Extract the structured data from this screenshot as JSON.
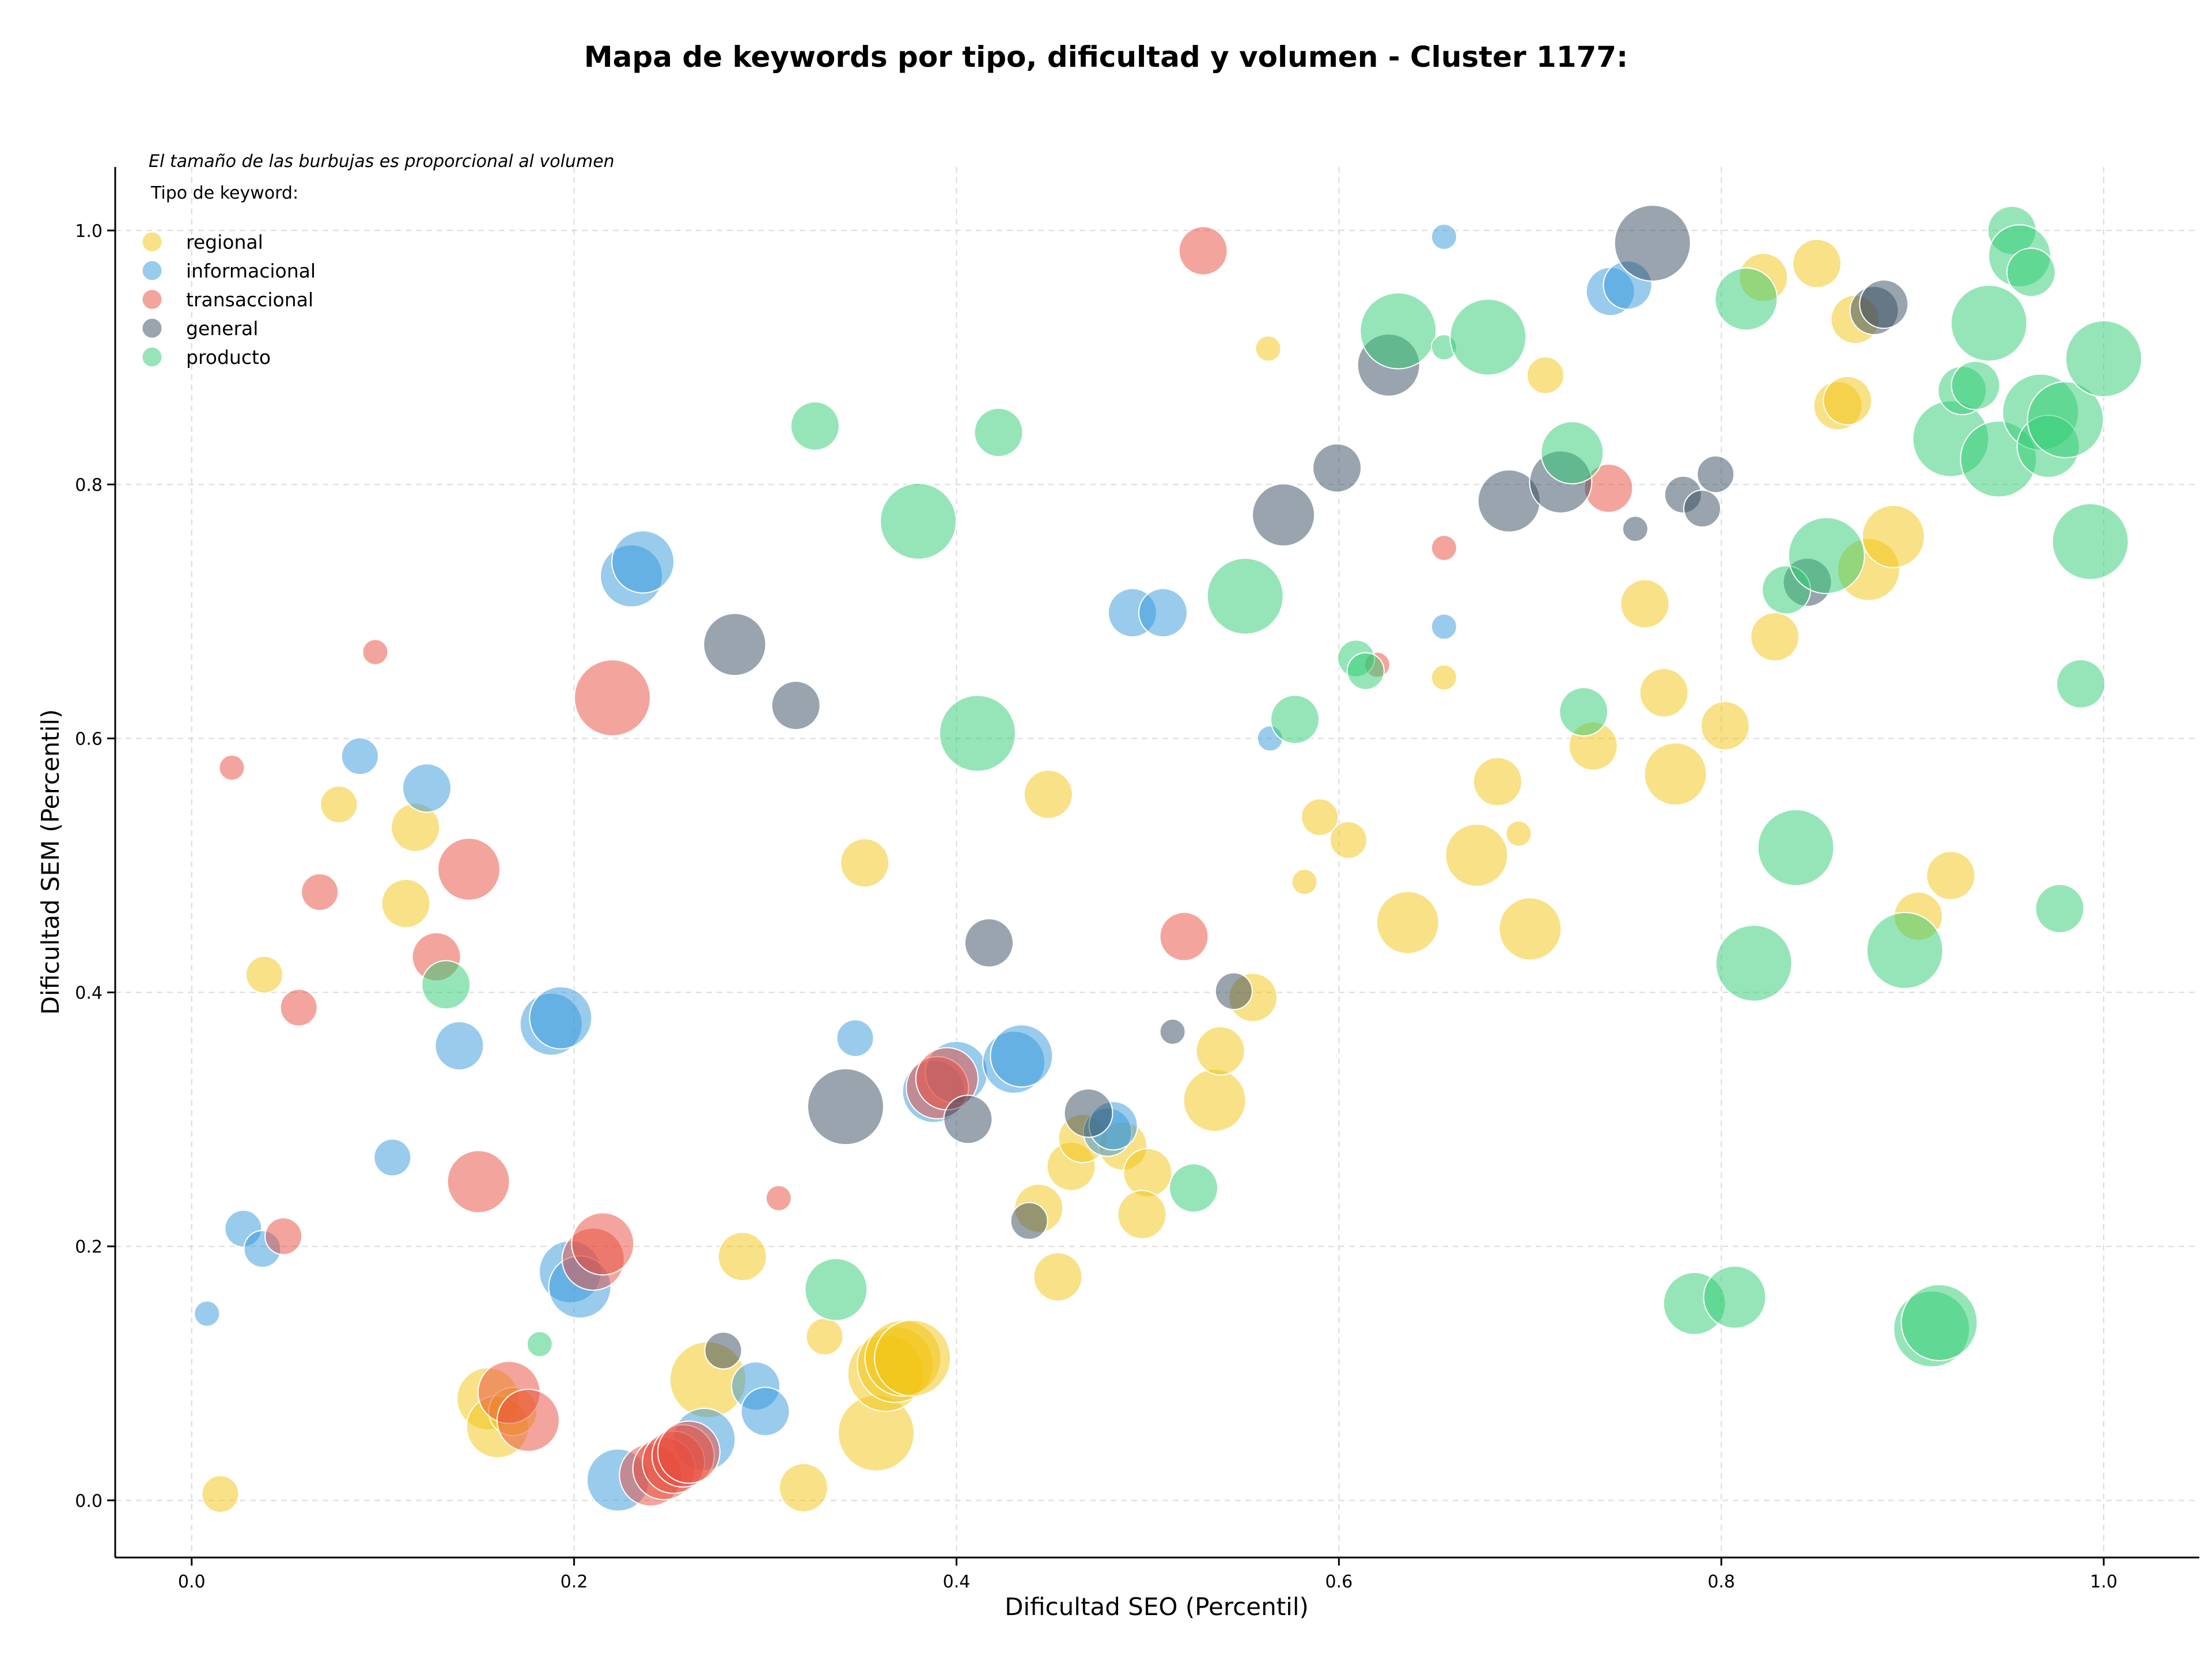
{
  "chart_data": {
    "type": "scatter",
    "title": "Mapa de keywords por tipo, dificultad y volumen - Cluster 1177:",
    "xlabel": "Dificultad SEO (Percentil)",
    "ylabel": "Dificultad SEM (Percentil)",
    "xlim": [
      -0.04,
      1.05
    ],
    "ylim": [
      -0.045,
      1.05
    ],
    "xticks": [
      0.0,
      0.2,
      0.4,
      0.6,
      0.8,
      1.0
    ],
    "xtick_labels": [
      "0.0",
      "0.2",
      "0.4",
      "0.6",
      "0.8",
      "1.0"
    ],
    "yticks": [
      0.0,
      0.2,
      0.4,
      0.6,
      0.8,
      1.0
    ],
    "ytick_labels": [
      "0.0",
      "0.2",
      "0.4",
      "0.6",
      "0.8",
      "1.0"
    ],
    "grid": true,
    "note": "El tamaño de las burbujas es proporcional al volumen",
    "legend_title": "Tipo de keyword:",
    "legend_position": "top-left",
    "series": [
      {
        "name": "regional",
        "color": "#f1c40f",
        "points": [
          {
            "x": 0.015,
            "y": 0.005,
            "s": 2
          },
          {
            "x": 0.038,
            "y": 0.414,
            "s": 2
          },
          {
            "x": 0.077,
            "y": 0.548,
            "s": 2
          },
          {
            "x": 0.112,
            "y": 0.47,
            "s": 3
          },
          {
            "x": 0.117,
            "y": 0.53,
            "s": 3
          },
          {
            "x": 0.155,
            "y": 0.08,
            "s": 4
          },
          {
            "x": 0.16,
            "y": 0.058,
            "s": 4
          },
          {
            "x": 0.168,
            "y": 0.07,
            "s": 3
          },
          {
            "x": 0.288,
            "y": 0.192,
            "s": 3
          },
          {
            "x": 0.27,
            "y": 0.095,
            "s": 5
          },
          {
            "x": 0.32,
            "y": 0.01,
            "s": 3
          },
          {
            "x": 0.331,
            "y": 0.129,
            "s": 2
          },
          {
            "x": 0.352,
            "y": 0.502,
            "s": 3
          },
          {
            "x": 0.358,
            "y": 0.053,
            "s": 5
          },
          {
            "x": 0.363,
            "y": 0.1,
            "s": 5
          },
          {
            "x": 0.368,
            "y": 0.107,
            "s": 5
          },
          {
            "x": 0.372,
            "y": 0.112,
            "s": 5
          },
          {
            "x": 0.377,
            "y": 0.112,
            "s": 5
          },
          {
            "x": 0.443,
            "y": 0.23,
            "s": 3
          },
          {
            "x": 0.448,
            "y": 0.556,
            "s": 3
          },
          {
            "x": 0.453,
            "y": 0.176,
            "s": 3
          },
          {
            "x": 0.46,
            "y": 0.263,
            "s": 3
          },
          {
            "x": 0.466,
            "y": 0.285,
            "s": 3
          },
          {
            "x": 0.487,
            "y": 0.279,
            "s": 3
          },
          {
            "x": 0.5,
            "y": 0.258,
            "s": 3
          },
          {
            "x": 0.497,
            "y": 0.225,
            "s": 3
          },
          {
            "x": 0.535,
            "y": 0.315,
            "s": 4
          },
          {
            "x": 0.538,
            "y": 0.354,
            "s": 3
          },
          {
            "x": 0.555,
            "y": 0.396,
            "s": 3
          },
          {
            "x": 0.563,
            "y": 0.907,
            "s": 1
          },
          {
            "x": 0.582,
            "y": 0.487,
            "s": 1
          },
          {
            "x": 0.59,
            "y": 0.538,
            "s": 2
          },
          {
            "x": 0.605,
            "y": 0.52,
            "s": 2
          },
          {
            "x": 0.636,
            "y": 0.455,
            "s": 4
          },
          {
            "x": 0.655,
            "y": 0.648,
            "s": 1
          },
          {
            "x": 0.672,
            "y": 0.508,
            "s": 4
          },
          {
            "x": 0.683,
            "y": 0.566,
            "s": 3
          },
          {
            "x": 0.694,
            "y": 0.525,
            "s": 1
          },
          {
            "x": 0.7,
            "y": 0.45,
            "s": 4
          },
          {
            "x": 0.708,
            "y": 0.886,
            "s": 2
          },
          {
            "x": 0.733,
            "y": 0.594,
            "s": 3
          },
          {
            "x": 0.76,
            "y": 0.706,
            "s": 3
          },
          {
            "x": 0.77,
            "y": 0.636,
            "s": 3
          },
          {
            "x": 0.776,
            "y": 0.572,
            "s": 4
          },
          {
            "x": 0.802,
            "y": 0.61,
            "s": 3
          },
          {
            "x": 0.822,
            "y": 0.963,
            "s": 3
          },
          {
            "x": 0.828,
            "y": 0.68,
            "s": 3
          },
          {
            "x": 0.85,
            "y": 0.974,
            "s": 3
          },
          {
            "x": 0.861,
            "y": 0.862,
            "s": 3
          },
          {
            "x": 0.866,
            "y": 0.866,
            "s": 3
          },
          {
            "x": 0.87,
            "y": 0.93,
            "s": 3
          },
          {
            "x": 0.877,
            "y": 0.733,
            "s": 4
          },
          {
            "x": 0.89,
            "y": 0.759,
            "s": 4
          },
          {
            "x": 0.903,
            "y": 0.46,
            "s": 3
          },
          {
            "x": 0.92,
            "y": 0.492,
            "s": 3
          }
        ]
      },
      {
        "name": "informacional",
        "color": "#3498db",
        "points": [
          {
            "x": 0.008,
            "y": 0.147,
            "s": 1
          },
          {
            "x": 0.027,
            "y": 0.214,
            "s": 2
          },
          {
            "x": 0.037,
            "y": 0.198,
            "s": 2
          },
          {
            "x": 0.088,
            "y": 0.586,
            "s": 2
          },
          {
            "x": 0.105,
            "y": 0.27,
            "s": 2
          },
          {
            "x": 0.123,
            "y": 0.561,
            "s": 3
          },
          {
            "x": 0.14,
            "y": 0.358,
            "s": 3
          },
          {
            "x": 0.188,
            "y": 0.375,
            "s": 4
          },
          {
            "x": 0.193,
            "y": 0.38,
            "s": 4
          },
          {
            "x": 0.198,
            "y": 0.18,
            "s": 4
          },
          {
            "x": 0.203,
            "y": 0.168,
            "s": 4
          },
          {
            "x": 0.223,
            "y": 0.016,
            "s": 4
          },
          {
            "x": 0.23,
            "y": 0.728,
            "s": 4
          },
          {
            "x": 0.236,
            "y": 0.739,
            "s": 4
          },
          {
            "x": 0.268,
            "y": 0.048,
            "s": 4
          },
          {
            "x": 0.295,
            "y": 0.09,
            "s": 3
          },
          {
            "x": 0.3,
            "y": 0.07,
            "s": 3
          },
          {
            "x": 0.347,
            "y": 0.364,
            "s": 2
          },
          {
            "x": 0.388,
            "y": 0.322,
            "s": 4
          },
          {
            "x": 0.4,
            "y": 0.337,
            "s": 4
          },
          {
            "x": 0.43,
            "y": 0.345,
            "s": 4
          },
          {
            "x": 0.434,
            "y": 0.35,
            "s": 4
          },
          {
            "x": 0.479,
            "y": 0.29,
            "s": 3
          },
          {
            "x": 0.482,
            "y": 0.295,
            "s": 3
          },
          {
            "x": 0.492,
            "y": 0.699,
            "s": 3
          },
          {
            "x": 0.508,
            "y": 0.699,
            "s": 3
          },
          {
            "x": 0.564,
            "y": 0.6,
            "s": 1
          },
          {
            "x": 0.655,
            "y": 0.995,
            "s": 1
          },
          {
            "x": 0.655,
            "y": 0.688,
            "s": 1
          },
          {
            "x": 0.742,
            "y": 0.952,
            "s": 3
          },
          {
            "x": 0.751,
            "y": 0.957,
            "s": 3
          }
        ]
      },
      {
        "name": "transaccional",
        "color": "#e74c3c",
        "points": [
          {
            "x": 0.021,
            "y": 0.577,
            "s": 1
          },
          {
            "x": 0.048,
            "y": 0.208,
            "s": 2
          },
          {
            "x": 0.056,
            "y": 0.388,
            "s": 2
          },
          {
            "x": 0.067,
            "y": 0.479,
            "s": 2
          },
          {
            "x": 0.096,
            "y": 0.668,
            "s": 1
          },
          {
            "x": 0.128,
            "y": 0.428,
            "s": 3
          },
          {
            "x": 0.145,
            "y": 0.497,
            "s": 4
          },
          {
            "x": 0.15,
            "y": 0.251,
            "s": 4
          },
          {
            "x": 0.166,
            "y": 0.085,
            "s": 4
          },
          {
            "x": 0.176,
            "y": 0.063,
            "s": 4
          },
          {
            "x": 0.21,
            "y": 0.19,
            "s": 4
          },
          {
            "x": 0.215,
            "y": 0.202,
            "s": 4
          },
          {
            "x": 0.22,
            "y": 0.632,
            "s": 5
          },
          {
            "x": 0.24,
            "y": 0.02,
            "s": 4
          },
          {
            "x": 0.247,
            "y": 0.025,
            "s": 4
          },
          {
            "x": 0.252,
            "y": 0.03,
            "s": 4
          },
          {
            "x": 0.257,
            "y": 0.035,
            "s": 4
          },
          {
            "x": 0.26,
            "y": 0.038,
            "s": 4
          },
          {
            "x": 0.307,
            "y": 0.238,
            "s": 1
          },
          {
            "x": 0.39,
            "y": 0.325,
            "s": 4
          },
          {
            "x": 0.395,
            "y": 0.332,
            "s": 4
          },
          {
            "x": 0.519,
            "y": 0.444,
            "s": 3
          },
          {
            "x": 0.529,
            "y": 0.984,
            "s": 3
          },
          {
            "x": 0.62,
            "y": 0.658,
            "s": 1
          },
          {
            "x": 0.655,
            "y": 0.75,
            "s": 1
          },
          {
            "x": 0.741,
            "y": 0.797,
            "s": 3
          }
        ]
      },
      {
        "name": "general",
        "color": "#34495e",
        "points": [
          {
            "x": 0.278,
            "y": 0.118,
            "s": 2
          },
          {
            "x": 0.284,
            "y": 0.674,
            "s": 4
          },
          {
            "x": 0.316,
            "y": 0.626,
            "s": 3
          },
          {
            "x": 0.342,
            "y": 0.31,
            "s": 5
          },
          {
            "x": 0.406,
            "y": 0.3,
            "s": 3
          },
          {
            "x": 0.417,
            "y": 0.439,
            "s": 3
          },
          {
            "x": 0.438,
            "y": 0.22,
            "s": 2
          },
          {
            "x": 0.469,
            "y": 0.305,
            "s": 3
          },
          {
            "x": 0.513,
            "y": 0.369,
            "s": 1
          },
          {
            "x": 0.545,
            "y": 0.401,
            "s": 2
          },
          {
            "x": 0.571,
            "y": 0.776,
            "s": 4
          },
          {
            "x": 0.599,
            "y": 0.813,
            "s": 3
          },
          {
            "x": 0.626,
            "y": 0.894,
            "s": 4
          },
          {
            "x": 0.689,
            "y": 0.787,
            "s": 4
          },
          {
            "x": 0.716,
            "y": 0.802,
            "s": 4
          },
          {
            "x": 0.755,
            "y": 0.765,
            "s": 1
          },
          {
            "x": 0.764,
            "y": 0.99,
            "s": 5
          },
          {
            "x": 0.78,
            "y": 0.792,
            "s": 2
          },
          {
            "x": 0.79,
            "y": 0.781,
            "s": 2
          },
          {
            "x": 0.797,
            "y": 0.808,
            "s": 2
          },
          {
            "x": 0.845,
            "y": 0.723,
            "s": 3
          },
          {
            "x": 0.88,
            "y": 0.937,
            "s": 3
          },
          {
            "x": 0.885,
            "y": 0.942,
            "s": 3
          }
        ]
      },
      {
        "name": "producto",
        "color": "#2ecc71",
        "points": [
          {
            "x": 0.133,
            "y": 0.406,
            "s": 3
          },
          {
            "x": 0.182,
            "y": 0.123,
            "s": 1
          },
          {
            "x": 0.326,
            "y": 0.846,
            "s": 3
          },
          {
            "x": 0.337,
            "y": 0.166,
            "s": 4
          },
          {
            "x": 0.38,
            "y": 0.771,
            "s": 5
          },
          {
            "x": 0.411,
            "y": 0.604,
            "s": 5
          },
          {
            "x": 0.422,
            "y": 0.841,
            "s": 3
          },
          {
            "x": 0.524,
            "y": 0.246,
            "s": 3
          },
          {
            "x": 0.551,
            "y": 0.712,
            "s": 5
          },
          {
            "x": 0.577,
            "y": 0.615,
            "s": 3
          },
          {
            "x": 0.609,
            "y": 0.663,
            "s": 2
          },
          {
            "x": 0.614,
            "y": 0.653,
            "s": 2
          },
          {
            "x": 0.631,
            "y": 0.921,
            "s": 5
          },
          {
            "x": 0.655,
            "y": 0.908,
            "s": 1
          },
          {
            "x": 0.678,
            "y": 0.916,
            "s": 5
          },
          {
            "x": 0.722,
            "y": 0.825,
            "s": 4
          },
          {
            "x": 0.728,
            "y": 0.621,
            "s": 3
          },
          {
            "x": 0.786,
            "y": 0.155,
            "s": 4
          },
          {
            "x": 0.807,
            "y": 0.16,
            "s": 4
          },
          {
            "x": 0.813,
            "y": 0.946,
            "s": 4
          },
          {
            "x": 0.817,
            "y": 0.423,
            "s": 5
          },
          {
            "x": 0.834,
            "y": 0.717,
            "s": 3
          },
          {
            "x": 0.839,
            "y": 0.514,
            "s": 5
          },
          {
            "x": 0.855,
            "y": 0.744,
            "s": 5
          },
          {
            "x": 0.896,
            "y": 0.433,
            "s": 5
          },
          {
            "x": 0.91,
            "y": 0.135,
            "s": 5
          },
          {
            "x": 0.914,
            "y": 0.14,
            "s": 5
          },
          {
            "x": 0.92,
            "y": 0.836,
            "s": 5
          },
          {
            "x": 0.926,
            "y": 0.874,
            "s": 3
          },
          {
            "x": 0.933,
            "y": 0.878,
            "s": 3
          },
          {
            "x": 0.94,
            "y": 0.927,
            "s": 5
          },
          {
            "x": 0.945,
            "y": 0.82,
            "s": 5
          },
          {
            "x": 0.952,
            "y": 1.0,
            "s": 3
          },
          {
            "x": 0.956,
            "y": 0.98,
            "s": 4
          },
          {
            "x": 0.962,
            "y": 0.967,
            "s": 3
          },
          {
            "x": 0.967,
            "y": 0.857,
            "s": 5
          },
          {
            "x": 0.971,
            "y": 0.83,
            "s": 4
          },
          {
            "x": 0.977,
            "y": 0.466,
            "s": 3
          },
          {
            "x": 0.98,
            "y": 0.851,
            "s": 5
          },
          {
            "x": 0.988,
            "y": 0.643,
            "s": 3
          },
          {
            "x": 0.993,
            "y": 0.755,
            "s": 5
          },
          {
            "x": 1.0,
            "y": 0.899,
            "s": 5
          }
        ]
      }
    ]
  }
}
